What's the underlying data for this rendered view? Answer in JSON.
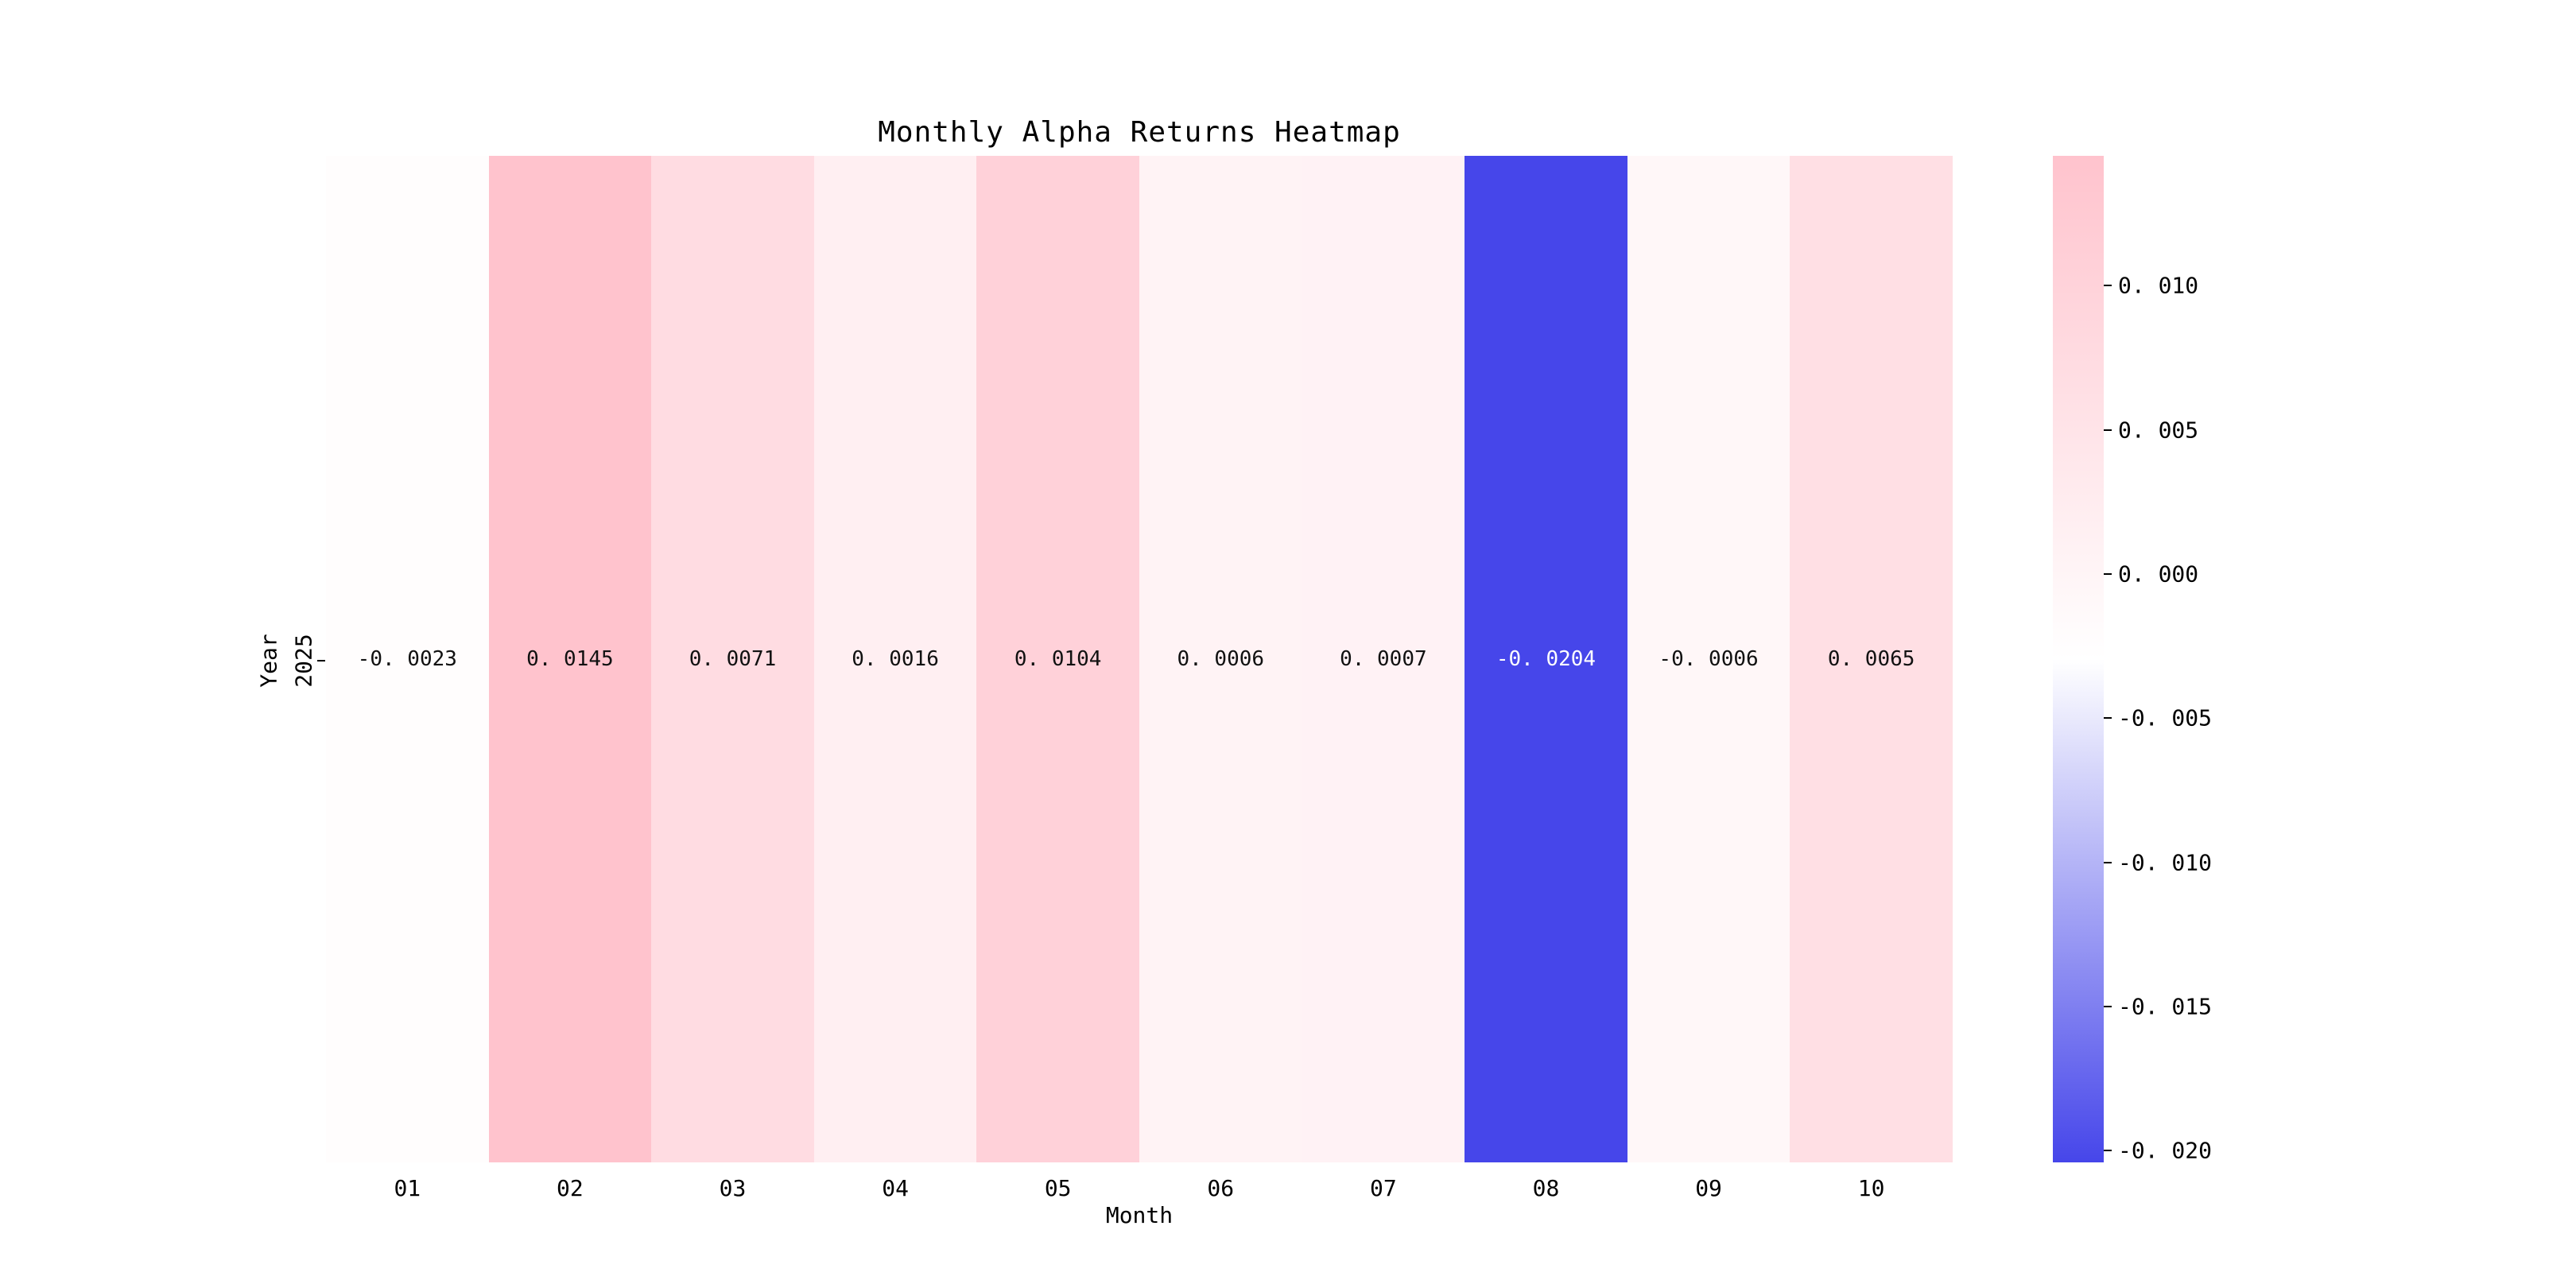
{
  "title": "Monthly Alpha Returns Heatmap",
  "chart_data": {
    "type": "heatmap",
    "title": "Monthly Alpha Returns Heatmap",
    "xlabel": "Month",
    "ylabel": "Year",
    "columns": [
      "01",
      "02",
      "03",
      "04",
      "05",
      "06",
      "07",
      "08",
      "09",
      "10"
    ],
    "rows": [
      "2025"
    ],
    "values": [
      [
        -0.0023,
        0.0145,
        0.0071,
        0.0016,
        0.0104,
        0.0006,
        0.0007,
        -0.0204,
        -0.0006,
        0.0065
      ]
    ],
    "value_labels": [
      [
        "-0. 0023",
        "0. 0145",
        "0. 0071",
        "0. 0016",
        "0. 0104",
        "0. 0006",
        "0. 0007",
        "-0. 0204",
        "-0. 0006",
        "0. 0065"
      ]
    ],
    "vmin": -0.0204,
    "vmax": 0.0145,
    "colormap": {
      "low": "#4646ea",
      "mid": "#ffffff",
      "high": "#ffc3cd"
    },
    "colorbar_ticks": [
      0.01,
      0.005,
      0.0,
      -0.005,
      -0.01,
      -0.015,
      -0.02
    ],
    "colorbar_tick_labels": [
      "0. 010",
      "0. 005",
      "0. 000",
      "-0. 005",
      "-0. 010",
      "-0. 015",
      "-0. 020"
    ],
    "legend_position": "right-colorbar",
    "grid": false
  }
}
